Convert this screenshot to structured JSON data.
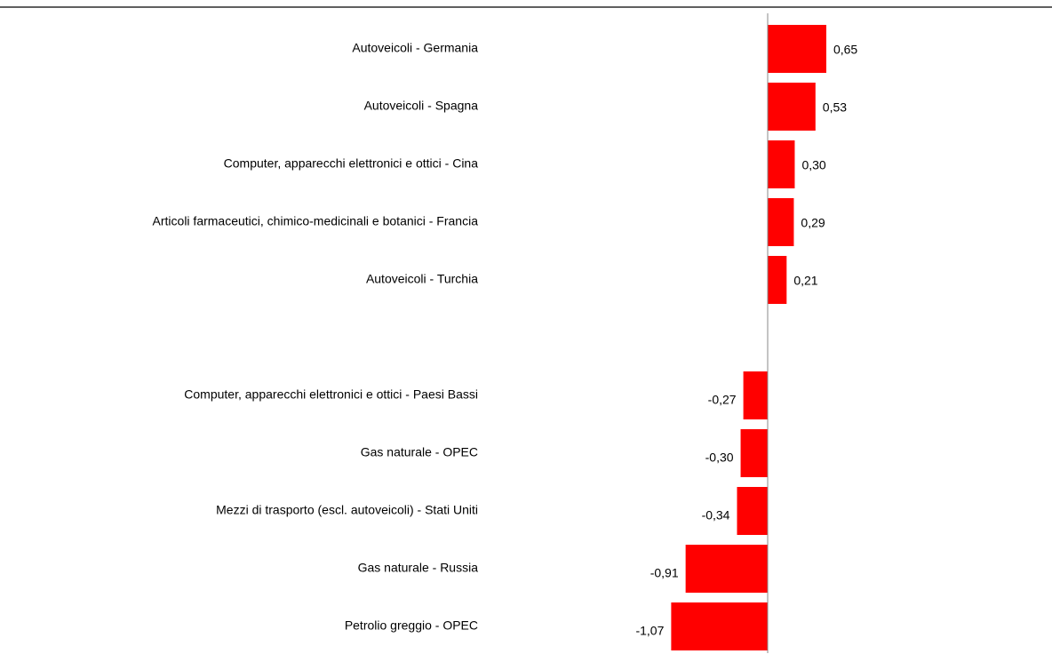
{
  "chart_data": {
    "type": "bar",
    "orientation": "horizontal",
    "categories": [
      "Autoveicoli - Germania",
      "Autoveicoli - Spagna",
      "Computer, apparecchi elettronici e ottici - Cina",
      "Articoli farmaceutici, chimico-medicinali e botanici - Francia",
      "Autoveicoli - Turchia",
      null,
      "Computer, apparecchi elettronici e ottici - Paesi Bassi",
      "Gas naturale - OPEC",
      "Mezzi di trasporto (escl. autoveicoli) - Stati Uniti",
      "Gas naturale - Russia",
      "Petrolio greggio - OPEC"
    ],
    "values": [
      0.65,
      0.53,
      0.3,
      0.29,
      0.21,
      null,
      -0.27,
      -0.3,
      -0.34,
      -0.91,
      -1.07
    ],
    "value_labels": [
      "0,65",
      "0,53",
      "0,30",
      "0,29",
      "0,21",
      null,
      "-0,27",
      "-0,30",
      "-0,34",
      "-0,91",
      "-1,07"
    ],
    "color": "#ff0000"
  }
}
